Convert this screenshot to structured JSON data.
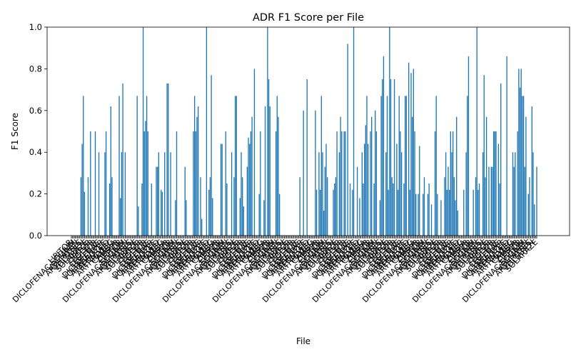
{
  "chart_data": {
    "type": "bar",
    "title": "ADR F1 Score per File",
    "xlabel": "File",
    "ylabel": "F1 Score",
    "ylim": [
      0,
      1
    ],
    "yticks": [
      "0.0",
      "0.2",
      "0.4",
      "0.6",
      "0.8",
      "1.0"
    ],
    "grid": false,
    "bar_color": "#1f77b4",
    "label_pool": [
      "ARTHROTEC",
      "VOLTAREN",
      "DICLOFENAC",
      "LIPITOR",
      "ZOCOR",
      "CAMBIA",
      "SOLARAZE",
      "PENNSAID",
      "ARTHROTEC",
      "VOLTAREN-XR",
      "DICLOFENAC-SODIUM",
      "FLECTOR",
      "ZIPSOR",
      "LIPITOR",
      "ARTHROTEC",
      "VOLTAREN"
    ],
    "values": [
      0,
      0,
      0,
      0,
      0,
      0,
      0,
      0,
      0.28,
      0.44,
      0.67,
      0.21,
      0,
      0,
      0.28,
      0,
      0.5,
      0,
      0,
      0,
      0.5,
      0,
      0,
      0.4,
      0,
      0,
      0,
      0,
      0.4,
      0.5,
      0,
      0,
      0.25,
      0.62,
      0.28,
      0,
      0,
      0,
      0,
      0,
      0.67,
      0.18,
      0.4,
      0.73,
      0,
      0.4,
      0,
      0,
      0,
      0,
      0,
      0,
      0,
      0,
      0,
      0.67,
      0.14,
      0,
      0,
      0.25,
      1.0,
      0.5,
      0.55,
      0.67,
      0.5,
      0,
      0,
      0.25,
      0,
      0,
      0,
      0.33,
      0.33,
      0.4,
      0,
      0.22,
      0.21,
      0,
      0.4,
      0,
      0.73,
      0.73,
      0,
      0.4,
      0,
      0,
      0,
      0.17,
      0.5,
      0,
      0,
      0,
      0,
      0,
      0,
      0.33,
      0.17,
      0,
      0,
      0,
      0,
      0,
      0.5,
      0.67,
      0.5,
      0.57,
      0.62,
      0,
      0.28,
      0.08,
      0,
      0,
      0,
      1.0,
      0,
      0.22,
      0.28,
      0.77,
      0.18,
      0,
      0,
      0,
      0,
      0,
      0,
      0.44,
      0.44,
      0,
      0,
      0.5,
      0.25,
      0,
      0,
      0,
      0.4,
      0,
      0.28,
      0.67,
      0.67,
      0,
      0,
      0.18,
      0.4,
      0.28,
      0.14,
      0,
      0,
      0.33,
      0.47,
      0.44,
      0.5,
      0.57,
      0,
      0.8,
      0,
      0,
      0,
      0.2,
      0.5,
      0,
      0,
      0.17,
      0.62,
      0,
      1.0,
      0.75,
      0.62,
      0,
      0,
      0,
      0,
      0.5,
      0.67,
      0.57,
      0.2,
      0,
      0,
      0,
      0,
      0,
      0,
      0,
      0,
      0,
      0,
      0,
      0,
      0,
      0,
      0,
      0,
      0.28,
      0,
      0,
      0.6,
      0,
      0,
      0.75,
      0,
      0,
      0,
      0,
      0,
      0,
      0.6,
      0.22,
      0,
      0.4,
      0.22,
      0.67,
      0.4,
      0.12,
      0.33,
      0.44,
      0.28,
      0,
      0,
      0,
      0,
      0.22,
      0.25,
      0.28,
      0.5,
      0,
      0.4,
      0.57,
      0.5,
      0,
      0.5,
      0.5,
      0,
      0.92,
      0,
      0.25,
      0,
      0.22,
      1.0,
      0,
      0,
      0.33,
      0,
      0.18,
      0,
      0.4,
      0.25,
      0.44,
      0.53,
      0.67,
      0.44,
      0,
      0.5,
      0.57,
      0,
      0.25,
      0.6,
      0.5,
      0,
      0,
      0.17,
      0.67,
      0.75,
      0.86,
      0,
      0.4,
      0.67,
      0.22,
      1.0,
      0.75,
      0.28,
      0.25,
      0.75,
      0,
      0.44,
      0.22,
      0.67,
      0.5,
      0.4,
      0,
      0.25,
      0.67,
      0.67,
      0,
      0.83,
      0.22,
      0.78,
      0.57,
      0.8,
      0.5,
      0.2,
      0,
      0.2,
      0.43,
      0,
      0,
      0.2,
      0.28,
      0,
      0,
      0.2,
      0.25,
      0,
      0.15,
      0,
      0,
      0.5,
      0.67,
      0.2,
      0,
      0,
      0.17,
      0,
      0,
      0.28,
      0.4,
      0.22,
      0.33,
      0.22,
      0.5,
      0.4,
      0.5,
      0.28,
      0.17,
      0.57,
      0.12,
      0,
      0,
      0,
      0,
      0.22,
      0,
      0.4,
      0.67,
      0.86,
      0,
      0,
      0,
      0.22,
      0,
      0.28,
      1.0,
      0.22,
      0.25,
      0,
      0,
      0.4,
      0.77,
      0.28,
      0.57,
      0,
      0.33,
      0,
      0.33,
      0.33,
      0.5,
      0.5,
      0.5,
      0,
      0.44,
      0.25,
      0.73,
      0,
      0,
      0,
      0,
      0.86,
      0,
      0,
      0,
      0,
      0.4,
      0.33,
      0.4,
      0,
      0.5,
      0.8,
      0.71,
      0.8,
      0.67,
      0.67,
      0.33,
      0.57,
      0,
      0.2,
      0.28,
      0,
      0.62,
      0.4,
      0.15,
      0,
      0.33
    ]
  }
}
